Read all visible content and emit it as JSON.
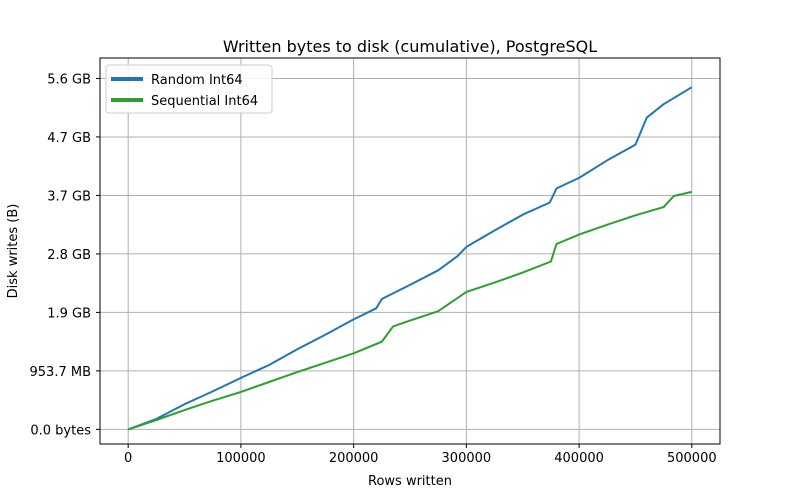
{
  "chart_data": {
    "type": "line",
    "title": "Written bytes to disk (cumulative), PostgreSQL",
    "xlabel": "Rows written",
    "ylabel": "Disk writes (B)",
    "xlim": [
      -25000,
      525000
    ],
    "ylim_bytes": [
      -250000000,
      6350000000
    ],
    "x_ticks": [
      {
        "value": 0,
        "label": "0"
      },
      {
        "value": 100000,
        "label": "100000"
      },
      {
        "value": 200000,
        "label": "200000"
      },
      {
        "value": 300000,
        "label": "300000"
      },
      {
        "value": 400000,
        "label": "400000"
      },
      {
        "value": 500000,
        "label": "500000"
      }
    ],
    "y_ticks": [
      {
        "value": 0,
        "label": "0.0 bytes"
      },
      {
        "value": 1000000000,
        "label": "953.7 MB"
      },
      {
        "value": 2000000000,
        "label": "1.9 GB"
      },
      {
        "value": 3000000000,
        "label": "2.8 GB"
      },
      {
        "value": 4000000000,
        "label": "3.7 GB"
      },
      {
        "value": 5000000000,
        "label": "4.7 GB"
      },
      {
        "value": 6000000000,
        "label": "5.6 GB"
      }
    ],
    "grid": true,
    "legend_position": "top-left",
    "series": [
      {
        "name": "Random Int64",
        "color": "#1f77b4",
        "x": [
          0,
          25000,
          50000,
          75000,
          100000,
          125000,
          150000,
          175000,
          200000,
          220000,
          225000,
          250000,
          275000,
          292000,
          300000,
          325000,
          350000,
          374000,
          380000,
          400000,
          425000,
          450000,
          460000,
          475000,
          500000
        ],
        "y": [
          0,
          180000000,
          430000000,
          650000000,
          880000000,
          1100000000,
          1370000000,
          1620000000,
          1880000000,
          2070000000,
          2230000000,
          2470000000,
          2720000000,
          2960000000,
          3120000000,
          3400000000,
          3670000000,
          3880000000,
          4120000000,
          4300000000,
          4600000000,
          4870000000,
          5330000000,
          5560000000,
          5850000000
        ]
      },
      {
        "name": "Sequential Int64",
        "color": "#2ca02c",
        "x": [
          0,
          25000,
          50000,
          75000,
          100000,
          125000,
          150000,
          175000,
          200000,
          225000,
          235000,
          250000,
          275000,
          300000,
          325000,
          350000,
          375000,
          380000,
          400000,
          425000,
          450000,
          475000,
          484000,
          500000
        ],
        "y": [
          0,
          160000000,
          330000000,
          490000000,
          640000000,
          810000000,
          980000000,
          1140000000,
          1300000000,
          1500000000,
          1760000000,
          1860000000,
          2020000000,
          2350000000,
          2510000000,
          2680000000,
          2870000000,
          3170000000,
          3330000000,
          3500000000,
          3660000000,
          3800000000,
          3990000000,
          4060000000
        ]
      }
    ]
  }
}
